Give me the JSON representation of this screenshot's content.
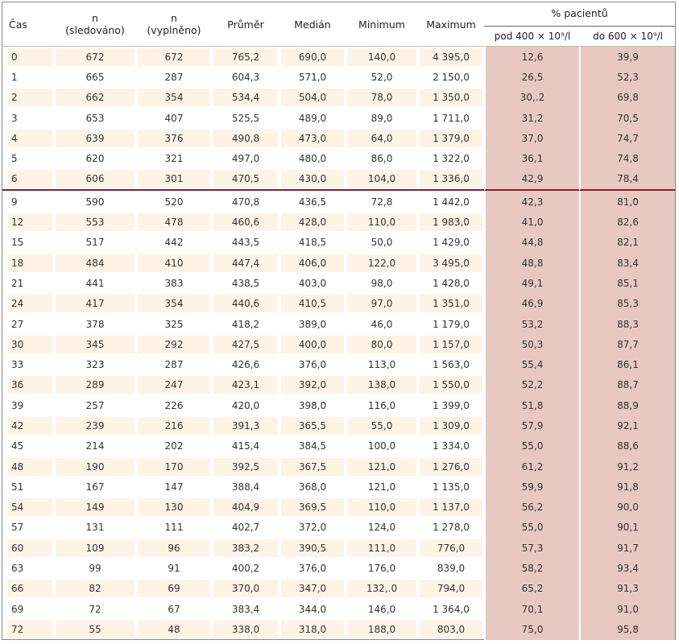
{
  "headers": {
    "cas": "Čas",
    "n_sledovano_top": "n",
    "n_sledovano_bottom": "(sledováno)",
    "n_vyplneno_top": "n",
    "n_vyplneno_bottom": "(vyplněno)",
    "prumer": "Průměr",
    "median": "Medián",
    "minimum": "Minimum",
    "maximum": "Maximum",
    "pacientu": "% pacientů",
    "pod400": "pod 400 × 10⁹/l",
    "do600": "do 600 × 10⁹/l"
  },
  "rows": [
    [
      "0",
      "672",
      "672",
      "765,2",
      "690,0",
      "140,0",
      "4 395,0",
      "12,6",
      "39,9"
    ],
    [
      "1",
      "665",
      "287",
      "604,3",
      "571,0",
      "52,0",
      "2 150,0",
      "26,5",
      "52,3"
    ],
    [
      "2",
      "662",
      "354",
      "534,4",
      "504,0",
      "78,0",
      "1 350,0",
      "30,.2",
      "69,8"
    ],
    [
      "3",
      "653",
      "407",
      "525,5",
      "489,0",
      "89,0",
      "1 711,0",
      "31,2",
      "70,5"
    ],
    [
      "4",
      "639",
      "376",
      "490,8",
      "473,0",
      "64,0",
      "1 379,0",
      "37,0",
      "74,7"
    ],
    [
      "5",
      "620",
      "321",
      "497,0",
      "480,0",
      "86,0",
      "1 322,0",
      "36,1",
      "74,8"
    ],
    [
      "6",
      "606",
      "301",
      "470,5",
      "430,0",
      "104,0",
      "1 336,0",
      "42,9",
      "78,4"
    ],
    [
      "9",
      "590",
      "520",
      "470,8",
      "436,5",
      "72,8",
      "1 442,0",
      "42,3",
      "81,0"
    ],
    [
      "12",
      "553",
      "478",
      "460,6",
      "428,0",
      "110,0",
      "1 983,0",
      "41,0",
      "82,6"
    ],
    [
      "15",
      "517",
      "442",
      "443,5",
      "418,5",
      "50,0",
      "1 429,0",
      "44,8",
      "82,1"
    ],
    [
      "18",
      "484",
      "410",
      "447,4",
      "406,0",
      "122,0",
      "3 495,0",
      "48,8",
      "83,4"
    ],
    [
      "21",
      "441",
      "383",
      "438,5",
      "403,0",
      "98,0",
      "1 428,0",
      "49,1",
      "85,1"
    ],
    [
      "24",
      "417",
      "354",
      "440,6",
      "410,5",
      "97,0",
      "1 351,0",
      "46,9",
      "85,3"
    ],
    [
      "27",
      "378",
      "325",
      "418,2",
      "389,0",
      "46,0",
      "1 179,0",
      "53,2",
      "88,3"
    ],
    [
      "30",
      "345",
      "292",
      "427,5",
      "400,0",
      "80,0",
      "1 157,0",
      "50,3",
      "87,7"
    ],
    [
      "33",
      "323",
      "287",
      "426,6",
      "376,0",
      "113,0",
      "1 563,0",
      "55,4",
      "86,1"
    ],
    [
      "36",
      "289",
      "247",
      "423,1",
      "392,0",
      "138,0",
      "1 550,0",
      "52,2",
      "88,7"
    ],
    [
      "39",
      "257",
      "226",
      "420,0",
      "398,0",
      "116,0",
      "1 399,0",
      "51,8",
      "88,9"
    ],
    [
      "42",
      "239",
      "216",
      "391,3",
      "365,5",
      "55,0",
      "1 309,0",
      "57,9",
      "92,1"
    ],
    [
      "45",
      "214",
      "202",
      "415,4",
      "384,5",
      "100,0",
      "1 334,0",
      "55,0",
      "88,6"
    ],
    [
      "48",
      "190",
      "170",
      "392,5",
      "367,5",
      "121,0",
      "1 276,0",
      "61,2",
      "91,2"
    ],
    [
      "51",
      "167",
      "147",
      "388,4",
      "368,0",
      "121,0",
      "1 135,0",
      "59,9",
      "91,8"
    ],
    [
      "54",
      "149",
      "130",
      "404,9",
      "369,5",
      "110,0",
      "1 137,0",
      "56,2",
      "90,0"
    ],
    [
      "57",
      "131",
      "111",
      "402,7",
      "372,0",
      "124,0",
      "1 278,0",
      "55,0",
      "90,1"
    ],
    [
      "60",
      "109",
      "96",
      "383,2",
      "390,5",
      "111,0",
      "776,0",
      "57,3",
      "91,7"
    ],
    [
      "63",
      "99",
      "91",
      "400,2",
      "376,0",
      "176,0",
      "839,0",
      "58,2",
      "93,4"
    ],
    [
      "66",
      "82",
      "69",
      "370,0",
      "347,0",
      "132,.0",
      "794,0",
      "65,2",
      "91,3"
    ],
    [
      "69",
      "72",
      "67",
      "383,4",
      "344,0",
      "146,0",
      "1 364,0",
      "70,1",
      "91,0"
    ],
    [
      "72",
      "55",
      "48",
      "338,0",
      "318,0",
      "188,0",
      "803,0",
      "75,0",
      "95,8"
    ]
  ],
  "colors": {
    "row_band": "#fdf4e6",
    "pct_column": "#e8c9c1",
    "separator": "#8a1c2a"
  }
}
